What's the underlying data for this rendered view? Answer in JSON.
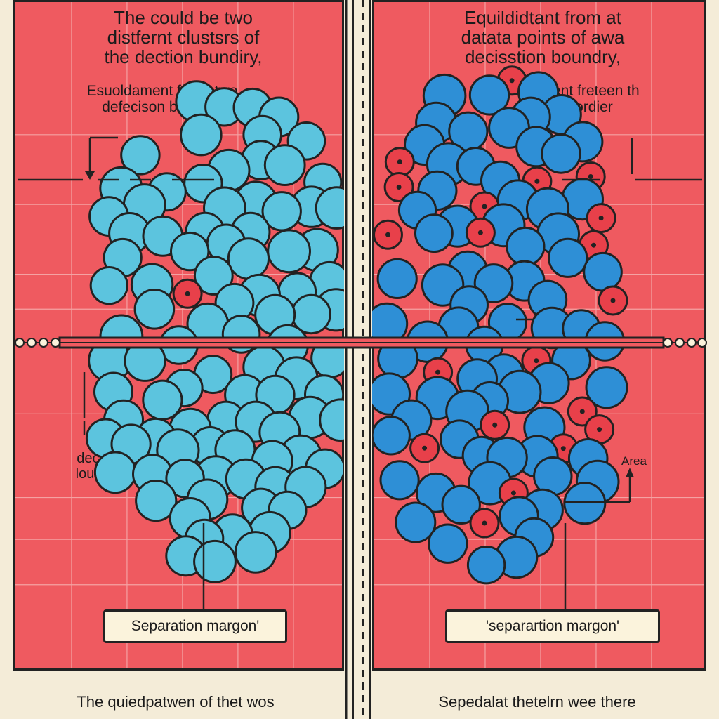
{
  "left_panel": {
    "title_lines": [
      "The could be two",
      "distfernt clustsrs of",
      "the dection bundiry,"
    ],
    "subtitle_lines": [
      "Esuoldament freen two",
      "defecison bundory"
    ],
    "side_label_lines": [
      "decision",
      "loundary"
    ],
    "margin_badge": "Separation margon'",
    "caption_lines": [
      "The quiedpatwen of thet wos"
    ]
  },
  "right_panel": {
    "title_lines": [
      "Equildidtant from at",
      "datata points of awa",
      "decisstion boundry,"
    ],
    "subtitle_lines": [
      "-selidistsent freteen th",
      "pee dadordier"
    ],
    "side_label": "Area",
    "margin_badge": "'separartion margon'",
    "caption_lines": [
      "Sepedalat thetelrn wee there"
    ]
  },
  "colors": {
    "panel_bg": "#ef5a60",
    "page_bg": "#f4ecd8",
    "cluster_light": "#5cc4de",
    "cluster_dark": "#2e8fd6",
    "minority_point": "#e8404a",
    "outline": "#222222"
  }
}
